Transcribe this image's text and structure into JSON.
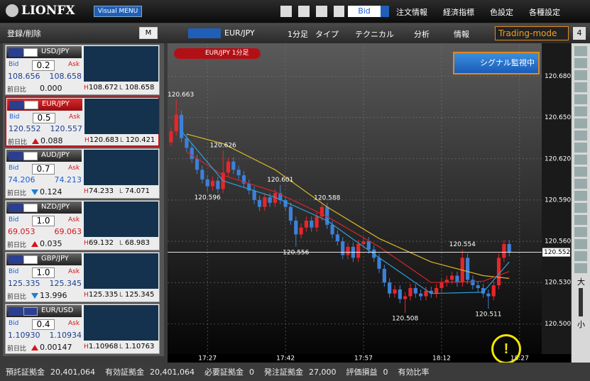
{
  "header": {
    "logo": "LIONFX",
    "menu_button": "Visual MENU",
    "price_select": "Bid",
    "items": [
      "注文情報",
      "経済指標",
      "色設定",
      "各種設定"
    ]
  },
  "sidebar": {
    "register": "登録/削除",
    "mode": "M",
    "bid_label": "Bid",
    "ask_label": "Ask",
    "change_label": "前日比",
    "high_label": "H",
    "low_label": "L",
    "pairs": [
      {
        "name": "USD/JPY",
        "spread": "0.2",
        "bid": "108.656",
        "ask": "108.658",
        "change": "0.000",
        "high": "108.672",
        "low": "108.658",
        "price_color": "#1c3f94"
      },
      {
        "name": "EUR/JPY",
        "spread": "0.5",
        "bid": "120.552",
        "ask": "120.557",
        "change": "0.088",
        "trend": "up",
        "high": "120.683",
        "low": "120.421",
        "price_color": "#1c3f94",
        "selected": true
      },
      {
        "name": "AUD/JPY",
        "spread": "0.7",
        "bid": "74.206",
        "ask": "74.213",
        "change": "0.124",
        "trend": "down",
        "high": "74.233",
        "low": "74.071",
        "price_color": "#1c5fd4"
      },
      {
        "name": "NZD/JPY",
        "spread": "1.0",
        "bid": "69.053",
        "ask": "69.063",
        "change": "0.035",
        "trend": "up",
        "high": "69.132",
        "low": "68.983",
        "price_color": "#d4141b"
      },
      {
        "name": "GBP/JPY",
        "spread": "1.0",
        "bid": "125.335",
        "ask": "125.345",
        "change": "13.996",
        "trend": "down",
        "high": "125.335",
        "low": "125.345",
        "price_color": "#1c3f94"
      },
      {
        "name": "EUR/USD",
        "spread": "0.4",
        "bid": "1.10930",
        "ask": "1.10934",
        "change": "0.00147",
        "trend": "up",
        "high": "1.10968",
        "low": "1.10763",
        "price_color": "#1c3f94"
      }
    ]
  },
  "toolbar": {
    "pair": "EUR/JPY",
    "interval": "1分足",
    "type": "タイプ",
    "technical": "テクニカル",
    "analysis": "分析",
    "info": "情報",
    "mode": "Trading-mode",
    "tab": "4"
  },
  "chart_tag": "EUR/JPY 1分足",
  "signal_button": "シグナル監視中",
  "zoom_in": "大",
  "zoom_out": "小",
  "chart_data": {
    "type": "candlestick",
    "open": [
      120.632,
      120.64,
      120.652,
      120.635,
      120.628,
      120.62,
      120.612,
      120.605,
      120.6,
      120.604,
      120.598,
      120.61,
      120.618,
      120.612,
      120.608,
      120.602,
      120.597,
      120.59,
      120.585,
      120.592,
      120.588,
      120.595,
      120.59,
      120.585,
      120.575,
      120.565,
      120.57,
      120.575,
      120.57,
      120.578,
      120.585,
      120.572,
      120.565,
      120.56,
      120.55,
      120.556,
      120.548,
      120.558,
      120.56,
      120.554,
      120.548,
      120.54,
      120.53,
      120.522,
      120.525,
      120.518,
      120.52,
      120.526,
      120.522,
      120.52,
      120.524,
      120.522,
      120.526,
      120.53,
      120.532,
      120.535,
      120.53,
      120.548,
      120.532,
      120.528,
      120.526,
      120.522,
      120.52,
      120.528,
      120.548,
      120.558
    ],
    "high": [
      120.643,
      120.663,
      120.655,
      120.638,
      120.631,
      120.623,
      120.615,
      120.608,
      120.607,
      120.607,
      120.626,
      120.621,
      120.621,
      120.615,
      120.611,
      120.605,
      120.6,
      120.593,
      120.595,
      120.595,
      120.598,
      120.601,
      120.593,
      120.588,
      120.578,
      120.573,
      120.578,
      120.578,
      120.581,
      120.587,
      120.588,
      120.575,
      120.568,
      120.563,
      120.559,
      120.559,
      120.561,
      120.563,
      120.563,
      120.557,
      120.551,
      120.543,
      120.533,
      120.528,
      120.528,
      120.523,
      120.529,
      120.529,
      120.525,
      120.527,
      120.527,
      120.529,
      120.533,
      120.535,
      120.538,
      120.538,
      120.554,
      120.551,
      120.535,
      120.531,
      120.529,
      120.525,
      120.531,
      120.551,
      120.561,
      120.561
    ],
    "low": [
      120.629,
      120.637,
      120.632,
      120.625,
      120.617,
      120.609,
      120.602,
      120.596,
      120.597,
      120.595,
      120.595,
      120.607,
      120.609,
      120.605,
      120.599,
      120.594,
      120.587,
      120.582,
      120.582,
      120.585,
      120.585,
      120.587,
      120.582,
      120.572,
      120.556,
      120.562,
      120.567,
      120.567,
      120.567,
      120.575,
      120.569,
      120.562,
      120.557,
      120.547,
      120.547,
      120.545,
      120.545,
      120.555,
      120.551,
      120.545,
      120.537,
      120.527,
      120.519,
      120.519,
      120.515,
      120.508,
      120.517,
      120.519,
      120.517,
      120.517,
      120.519,
      120.519,
      120.523,
      120.527,
      120.529,
      120.527,
      120.527,
      120.529,
      120.525,
      120.523,
      120.519,
      120.511,
      120.517,
      120.525,
      120.545,
      120.549
    ],
    "close": [
      120.64,
      120.652,
      120.635,
      120.628,
      120.62,
      120.612,
      120.605,
      120.6,
      120.604,
      120.598,
      120.61,
      120.618,
      120.612,
      120.608,
      120.602,
      120.597,
      120.59,
      120.585,
      120.592,
      120.588,
      120.595,
      120.59,
      120.585,
      120.575,
      120.565,
      120.57,
      120.575,
      120.57,
      120.578,
      120.585,
      120.572,
      120.565,
      120.56,
      120.55,
      120.556,
      120.548,
      120.558,
      120.56,
      120.554,
      120.548,
      120.54,
      120.53,
      120.522,
      120.525,
      120.518,
      120.52,
      120.526,
      120.522,
      120.52,
      120.524,
      120.522,
      120.526,
      120.53,
      120.532,
      120.535,
      120.53,
      120.548,
      120.532,
      120.528,
      120.526,
      120.522,
      120.52,
      120.528,
      120.548,
      120.558,
      120.552
    ],
    "up_color": "#e8262b",
    "down_color": "#3d80d8",
    "ma": [
      {
        "color": "#d9b526",
        "x": [
          3,
          10,
          20,
          30,
          40,
          50,
          60,
          65
        ],
        "values": [
          120.638,
          120.631,
          120.612,
          120.585,
          120.562,
          120.545,
          120.535,
          120.533
        ]
      },
      {
        "color": "#d2262b",
        "x": [
          3,
          10,
          20,
          30,
          40,
          50,
          60,
          65
        ],
        "values": [
          120.625,
          120.608,
          120.596,
          120.578,
          120.556,
          120.53,
          120.531,
          120.538
        ]
      },
      {
        "color": "#2f9fd8",
        "x": [
          2,
          10,
          20,
          30,
          40,
          50,
          60,
          65
        ],
        "values": [
          120.64,
          120.604,
          120.592,
          120.575,
          120.548,
          120.522,
          120.523,
          120.545
        ]
      }
    ],
    "xlim": [
      -0.67,
      71.25
    ],
    "ylim": [
      120.478,
      120.704
    ],
    "xticks": [
      {
        "value": 7,
        "label": "17:27"
      },
      {
        "value": 22,
        "label": "17:42"
      },
      {
        "value": 37,
        "label": "17:57"
      },
      {
        "value": 52,
        "label": "18:12"
      },
      {
        "value": 67,
        "label": "18:27"
      }
    ],
    "yticks": [
      {
        "value": 120.68,
        "label": "120.680"
      },
      {
        "value": 120.65,
        "label": "120.650"
      },
      {
        "value": 120.62,
        "label": "120.620"
      },
      {
        "value": 120.59,
        "label": "120.590"
      },
      {
        "value": 120.56,
        "label": "120.560"
      },
      {
        "value": 120.53,
        "label": "120.530"
      },
      {
        "value": 120.5,
        "label": "120.500"
      }
    ],
    "grid": true
  },
  "footer": [
    "預託証拠金",
    "20,401,064",
    "有効証拠金",
    "20,401,064",
    "必要証拠金",
    "0",
    "発注証拠金",
    "27,000",
    "評価損益",
    "0",
    "有効比率"
  ]
}
